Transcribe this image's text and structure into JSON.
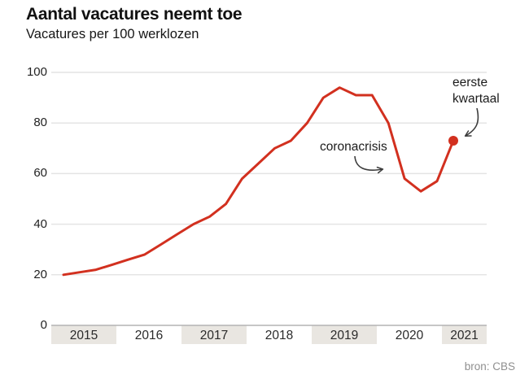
{
  "header": {
    "title": "Aantal vacatures neemt toe",
    "subtitle": "Vacatures per 100 werklozen"
  },
  "source": "bron: CBS",
  "annotations": {
    "corona": {
      "label": "coronacrisis"
    },
    "q1": {
      "line1": "eerste",
      "line2": "kwartaal"
    }
  },
  "colors": {
    "accent": "#d2301f",
    "grid": "#e4e4e4",
    "band_shaded": "#e9e6e1",
    "band_white": "#ffffff",
    "axis_line": "#b4b4b4",
    "arrow": "#3c3c3c"
  },
  "chart_data": {
    "type": "line",
    "title": "Aantal vacatures neemt toe",
    "subtitle": "Vacatures per 100 werklozen",
    "ylabel": "Vacatures per 100 werklozen",
    "xlabel": "",
    "ylim": [
      0,
      100
    ],
    "y_ticks": [
      0,
      20,
      40,
      60,
      80,
      100
    ],
    "grid": true,
    "legend": "none",
    "x_years": [
      "2015",
      "2016",
      "2017",
      "2018",
      "2019",
      "2020",
      "2021"
    ],
    "x": [
      "2015 K1",
      "2015 K2",
      "2015 K3",
      "2015 K4",
      "2016 K1",
      "2016 K2",
      "2016 K3",
      "2016 K4",
      "2017 K1",
      "2017 K2",
      "2017 K3",
      "2017 K4",
      "2018 K1",
      "2018 K2",
      "2018 K3",
      "2018 K4",
      "2019 K1",
      "2019 K2",
      "2019 K3",
      "2019 K4",
      "2020 K1",
      "2020 K2",
      "2020 K3",
      "2020 K4",
      "2021 K1"
    ],
    "series": [
      {
        "name": "Vacatures per 100 werklozen",
        "values": [
          20,
          21,
          22,
          24,
          26,
          28,
          32,
          36,
          40,
          43,
          48,
          58,
          64,
          70,
          73,
          80,
          90,
          94,
          91,
          91,
          80,
          58,
          53,
          57,
          73
        ]
      }
    ],
    "annotations": [
      {
        "text": "coronacrisis",
        "points_to": "2020 K2"
      },
      {
        "text": "eerste kwartaal",
        "points_to": "2021 K1"
      }
    ],
    "last_point_marker": true
  }
}
